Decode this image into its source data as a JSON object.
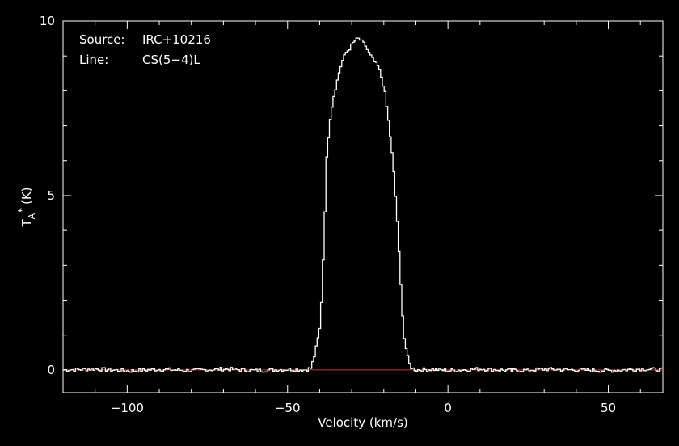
{
  "chart_data": {
    "type": "line",
    "title": "",
    "annotations": {
      "source_label": "Source:",
      "source_value": "IRC+10216",
      "line_label": "Line:",
      "line_value": "CS(5−4)L"
    },
    "xlabel": "Velocity (km/s)",
    "ylabel_base": "T",
    "ylabel_sub": "A",
    "ylabel_sup": "*",
    "ylabel_unit": " (K)",
    "xlim": [
      -120,
      67
    ],
    "ylim": [
      -0.65,
      10
    ],
    "xticks": [
      -100,
      -50,
      0,
      50
    ],
    "xtick_labels": [
      "−100",
      "−50",
      "0",
      "50"
    ],
    "yticks": [
      0,
      5,
      10
    ],
    "ytick_labels": [
      "0",
      "5",
      "10"
    ],
    "grid": false,
    "baseline": {
      "y": 0,
      "color": "#c0392b"
    },
    "series": [
      {
        "color": "#ffffff",
        "x": [
          -120,
          -110,
          -100,
          -90,
          -80,
          -70,
          -60,
          -50,
          -45,
          -43,
          -42,
          -41,
          -40,
          -39,
          -38,
          -37,
          -36,
          -35,
          -34,
          -33,
          -32,
          -31,
          -30,
          -29,
          -28,
          -27,
          -26,
          -25,
          -24,
          -23,
          -22,
          -21,
          -20,
          -19,
          -18,
          -17,
          -16,
          -15,
          -14,
          -13,
          -12,
          -11,
          -10,
          -5,
          0,
          10,
          20,
          30,
          40,
          50,
          60,
          67
        ],
        "y": [
          0,
          0.03,
          -0.03,
          0.02,
          -0.02,
          0.03,
          -0.02,
          0.02,
          0.0,
          0.05,
          0.35,
          0.8,
          1.3,
          3.5,
          6.2,
          7.2,
          7.8,
          8.2,
          8.6,
          8.9,
          9.1,
          9.2,
          9.35,
          9.45,
          9.5,
          9.4,
          9.3,
          9.1,
          8.95,
          8.8,
          8.7,
          8.4,
          8.0,
          7.3,
          6.5,
          5.5,
          4.2,
          2.5,
          1.0,
          0.45,
          0.1,
          0.03,
          0.0,
          0.02,
          -0.02,
          0.03,
          -0.02,
          0.02,
          0.0,
          -0.02,
          0.03,
          0.0
        ]
      }
    ]
  }
}
